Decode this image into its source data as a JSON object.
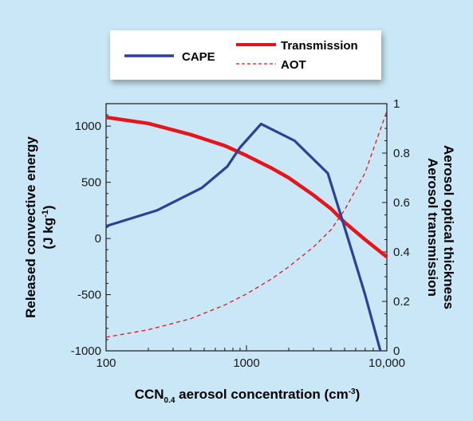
{
  "colors": {
    "background": "#c9e7f6",
    "cape": "#2f3f97",
    "transmission": "#e4161b",
    "aot": "#e4161b"
  },
  "chart_data": {
    "type": "line",
    "xscale": "log",
    "xlim": [
      100,
      10000
    ],
    "x_ticks": [
      "100",
      "1000",
      "10,000"
    ],
    "xlabel": {
      "main": "CCN",
      "sub": "0.4",
      "rest": " aerosol concentration (cm",
      "sup": "-3",
      "end": ")"
    },
    "ylabel_left": {
      "line1": "Released convective energy",
      "line2_pre": "(J kg",
      "line2_sup": "-1",
      "line2_post": ")"
    },
    "ylim_left": [
      -1000,
      1200
    ],
    "yticks_left": [
      "-1000",
      "-500",
      "0",
      "500",
      "1000"
    ],
    "ylabel_right": {
      "line1": "Aerosol optical thickness",
      "line2": "Aerosol transmission"
    },
    "ylim_right": [
      0,
      1
    ],
    "yticks_right": [
      "0",
      "0.2",
      "0.4",
      "0.6",
      "0.8",
      "1"
    ],
    "legend": {
      "cape": "CAPE",
      "transmission": "Transmission",
      "aot": "AOT"
    },
    "series": [
      {
        "name": "CAPE",
        "axis": "left",
        "x": [
          100,
          230,
          480,
          730,
          900,
          1270,
          2200,
          3800,
          5200,
          7000,
          9000
        ],
        "y": [
          110,
          250,
          450,
          640,
          810,
          1020,
          870,
          580,
          30,
          -500,
          -1000
        ]
      },
      {
        "name": "Transmission",
        "axis": "right",
        "x": [
          100,
          200,
          400,
          700,
          1000,
          1500,
          2000,
          3000,
          4000,
          5000,
          7000,
          10000
        ],
        "y": [
          0.945,
          0.92,
          0.875,
          0.83,
          0.79,
          0.74,
          0.7,
          0.63,
          0.575,
          0.52,
          0.45,
          0.38
        ]
      },
      {
        "name": "AOT",
        "axis": "right",
        "x": [
          100,
          200,
          400,
          700,
          1000,
          1500,
          2000,
          3000,
          4000,
          5000,
          7000,
          10000
        ],
        "y": [
          0.055,
          0.085,
          0.13,
          0.185,
          0.23,
          0.29,
          0.34,
          0.42,
          0.49,
          0.57,
          0.72,
          0.97
        ]
      }
    ]
  }
}
